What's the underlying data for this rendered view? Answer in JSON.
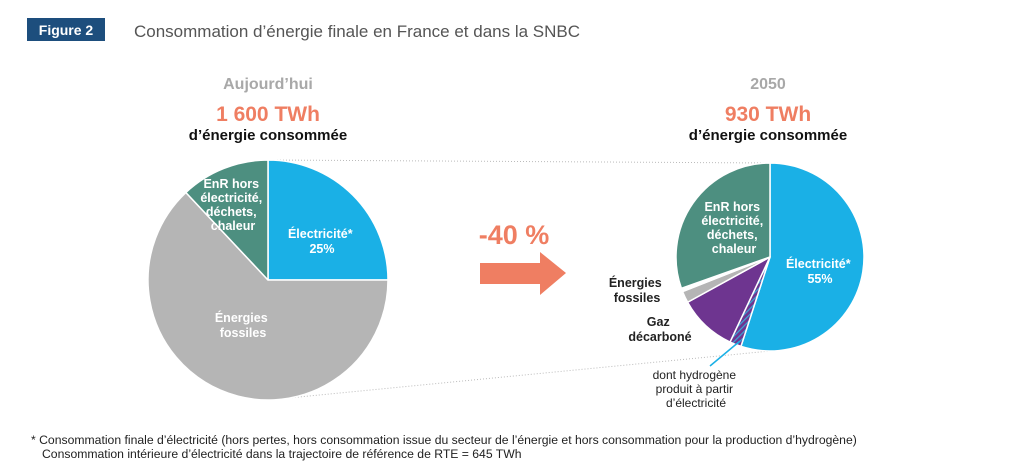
{
  "figure": {
    "badge": "Figure 2",
    "title": "Consommation d’énergie finale en France et dans la SNBC"
  },
  "colors": {
    "badge_bg": "#1d4e7d",
    "electricite": "#1ab0e6",
    "fossiles": "#b5b5b5",
    "enr": "#4d8f80",
    "gaz_decarbone": "#6e3590",
    "hydrogene": "#3aa8d6",
    "accent": "#ef7e62"
  },
  "chart_data": [
    {
      "type": "pie",
      "period": "Aujourd’hui",
      "total_value": "1 600 TWh",
      "total_sub": "d’énergie consommée",
      "slices": [
        {
          "key": "electricite",
          "label": [
            "Électricité*",
            "25%"
          ],
          "value": 25,
          "color": "#1ab0e6"
        },
        {
          "key": "fossiles",
          "label": [
            "Énergies",
            "fossiles"
          ],
          "value": 63,
          "color": "#b5b5b5"
        },
        {
          "key": "enr",
          "label": [
            "EnR hors",
            "électricité,",
            "déchets,",
            "chaleur"
          ],
          "value": 12,
          "color": "#4d8f80"
        }
      ]
    },
    {
      "type": "pie",
      "period": "2050",
      "total_value": "930 TWh",
      "total_sub": "d’énergie consommée",
      "slices": [
        {
          "key": "electricite",
          "label": [
            "Électricité*",
            "55%"
          ],
          "value": 55,
          "color": "#1ab0e6"
        },
        {
          "key": "hydrogene",
          "label": [
            "dont hydrogène",
            "produit à partir",
            "d’électricité"
          ],
          "value": 2,
          "color": "#3aa8d6",
          "hatched": true
        },
        {
          "key": "gaz_decarbone",
          "label": [
            "Gaz",
            "décarboné"
          ],
          "value": 10,
          "color": "#6e3590"
        },
        {
          "key": "fossiles",
          "label": [
            "Énergies",
            "fossiles"
          ],
          "value": 2,
          "color": "#b5b5b5"
        },
        {
          "key": "separator",
          "label": [],
          "value": 0.6,
          "color": "#ffffff"
        },
        {
          "key": "enr",
          "label": [
            "EnR hors",
            "électricité,",
            "déchets,",
            "chaleur"
          ],
          "value": 30.4,
          "color": "#4d8f80"
        }
      ]
    }
  ],
  "change": {
    "label": "-40 %"
  },
  "footnote": {
    "line1": "* Consommation finale d’électricité (hors pertes, hors consommation issue du secteur de l’énergie et hors consommation pour la production d’hydrogène)",
    "line2": "Consommation intérieure d’électricité dans la trajectoire de référence de RTE = 645 TWh"
  }
}
